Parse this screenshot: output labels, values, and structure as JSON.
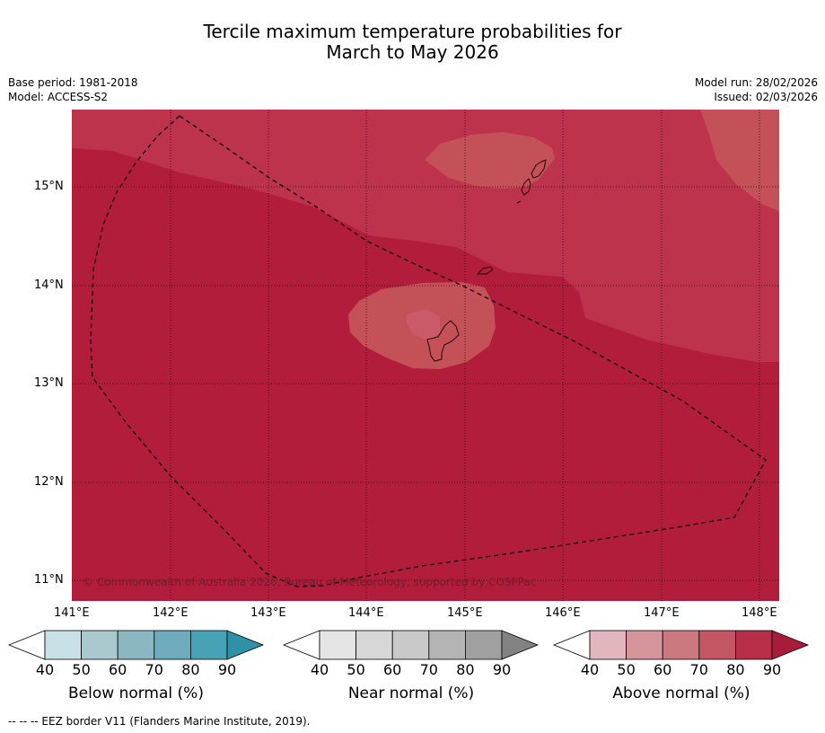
{
  "title": {
    "line1": "Tercile maximum temperature probabilities for",
    "line2": "March to May 2026"
  },
  "meta": {
    "base_period": "Base period: 1981-2018",
    "model": "Model: ACCESS-S2",
    "model_run": "Model run: 28/02/2026",
    "issued": "Issued: 02/03/2026"
  },
  "map": {
    "lat_labels": [
      "15°N",
      "14°N",
      "13°N",
      "12°N",
      "11°N"
    ],
    "lon_labels": [
      "141°E",
      "142°E",
      "143°E",
      "144°E",
      "145°E",
      "146°E",
      "147°E",
      "148°E"
    ],
    "copyright": "© Commonwealth of Australia 2026, Bureau of Meteorology, supported by COSPPac",
    "colors": {
      "p90": "#b21d3b",
      "p80": "#bd334b",
      "p70": "#c45058"
    }
  },
  "colorbars": [
    {
      "label": "Below normal (%)",
      "ticks": [
        "40",
        "50",
        "60",
        "70",
        "80",
        "90"
      ],
      "colors": [
        "#ffffff",
        "#c8e1e7",
        "#a9c9cf",
        "#8bb7c3",
        "#6eacbd",
        "#48a2b5",
        "#2e91a6"
      ]
    },
    {
      "label": "Near normal (%)",
      "ticks": [
        "40",
        "50",
        "60",
        "70",
        "80",
        "90"
      ],
      "colors": [
        "#ffffff",
        "#e5e5e5",
        "#d7d7d7",
        "#c9c9c9",
        "#b4b4b4",
        "#a0a0a0",
        "#828282"
      ]
    },
    {
      "label": "Above normal (%)",
      "ticks": [
        "40",
        "50",
        "60",
        "70",
        "80",
        "90"
      ],
      "colors": [
        "#ffffff",
        "#e2b6bd",
        "#d6959c",
        "#cd777f",
        "#c45563",
        "#b82e48",
        "#a91b3a"
      ]
    }
  ],
  "footnote": "--  --  -- EEZ border V11 (Flanders Marine Institute, 2019)."
}
